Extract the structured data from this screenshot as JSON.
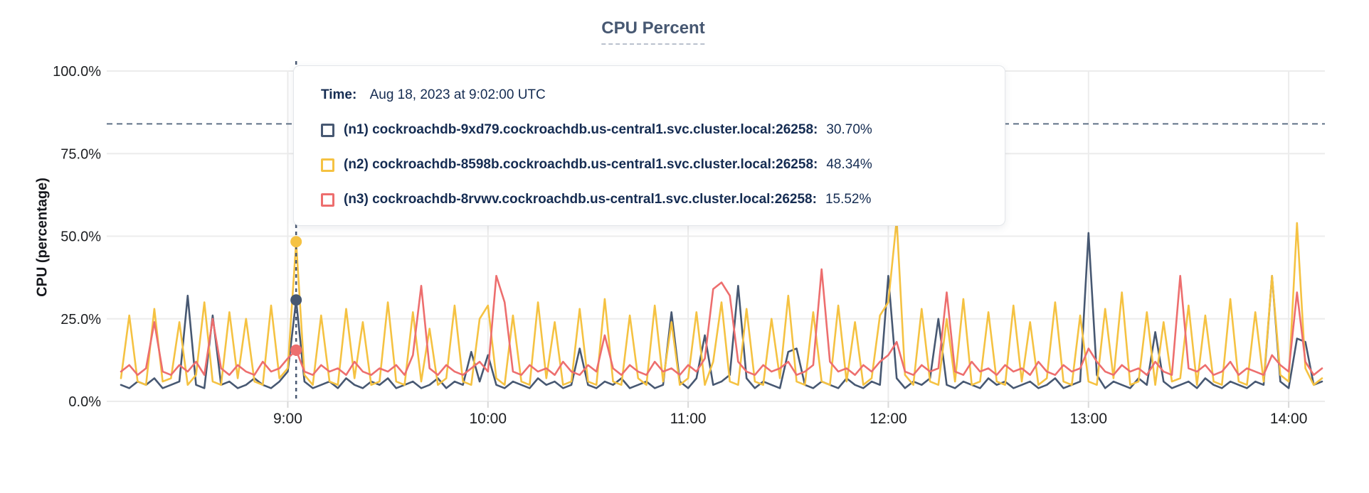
{
  "chart": {
    "title": "CPU Percent"
  },
  "y_axis": {
    "title": "CPU (percentage)"
  },
  "tooltip": {
    "time_label": "Time:",
    "time_value": "Aug 18, 2023 at 9:02:00 UTC",
    "rows": [
      {
        "label": "(n1) cockroachdb-9xd79.cockroachdb.us-central1.svc.cluster.local:26258:",
        "value": "30.70%"
      },
      {
        "label": "(n2) cockroachdb-8598b.cockroachdb.us-central1.svc.cluster.local:26258:",
        "value": "48.34%"
      },
      {
        "label": "(n3) cockroachdb-8rvwv.cockroachdb.us-central1.svc.cluster.local:26258:",
        "value": "15.52%"
      }
    ]
  },
  "colors": {
    "grid": "#ececec",
    "tick": "#d9d9d9",
    "tick_text": "#1c1e21",
    "threshold": "#5f7186",
    "hover_line": "#4a5a74",
    "title": "#475872",
    "tooltip_text": "#152c52"
  },
  "chart_data": {
    "type": "line",
    "title": "CPU Percent",
    "xlabel": "",
    "ylabel": "CPU (percentage)",
    "ylim": [
      0,
      100
    ],
    "grid": true,
    "x_range_minutes": [
      490,
      850
    ],
    "y_ticks": [
      {
        "label": "100.0%",
        "v": 100
      },
      {
        "label": "75.0%",
        "v": 75
      },
      {
        "label": "50.0%",
        "v": 50
      },
      {
        "label": "25.0%",
        "v": 25
      },
      {
        "label": "0.0%",
        "v": 0
      }
    ],
    "x_ticks": [
      {
        "label": "9:00",
        "t": 540
      },
      {
        "label": "10:00",
        "t": 600
      },
      {
        "label": "11:00",
        "t": 660
      },
      {
        "label": "12:00",
        "t": 720
      },
      {
        "label": "13:00",
        "t": 780
      },
      {
        "label": "14:00",
        "t": 840
      }
    ],
    "threshold_pct": 84,
    "hover": {
      "t": 542.5,
      "time": "9:02:00"
    },
    "series": [
      {
        "id": "n1",
        "name": "(n1) cockroachdb-9xd79.cockroachdb.us-central1.svc.cluster.local:26258",
        "color": "#475872",
        "hover_value": 30.7,
        "t0": 490,
        "step_min": 2.5,
        "values": [
          5,
          4,
          6,
          5,
          7,
          4,
          5,
          6,
          32,
          5,
          4,
          26,
          5,
          6,
          4,
          5,
          7,
          5,
          4,
          6,
          9,
          30.7,
          6,
          4,
          5,
          6,
          4,
          7,
          5,
          4,
          6,
          5,
          7,
          4,
          5,
          6,
          4,
          5,
          7,
          4,
          6,
          5,
          15,
          6,
          14,
          5,
          4,
          6,
          5,
          4,
          7,
          5,
          6,
          4,
          5,
          16,
          5,
          4,
          6,
          5,
          7,
          4,
          5,
          6,
          4,
          5,
          27,
          6,
          4,
          7,
          20,
          5,
          6,
          8,
          35,
          7,
          4,
          6,
          5,
          4,
          15,
          16,
          5,
          4,
          6,
          5,
          4,
          7,
          5,
          4,
          6,
          5,
          38,
          7,
          4,
          6,
          5,
          7,
          25,
          5,
          4,
          6,
          5,
          4,
          7,
          5,
          6,
          4,
          5,
          6,
          4,
          5,
          7,
          4,
          5,
          6,
          51,
          8,
          4,
          6,
          5,
          4,
          7,
          5,
          21,
          6,
          4,
          5,
          6,
          4,
          7,
          5,
          4,
          6,
          5,
          4,
          6,
          5,
          38,
          6,
          4,
          19,
          18,
          5,
          6
        ]
      },
      {
        "id": "n2",
        "name": "(n2) cockroachdb-8598b.cockroachdb.us-central1.svc.cluster.local:26258",
        "color": "#f5c242",
        "hover_value": 48.34,
        "t0": 490,
        "step_min": 2.5,
        "values": [
          7,
          26,
          6,
          5,
          28,
          6,
          7,
          24,
          5,
          8,
          30,
          6,
          5,
          27,
          7,
          25,
          6,
          5,
          29,
          7,
          10,
          48.3,
          8,
          5,
          26,
          6,
          5,
          28,
          7,
          24,
          5,
          6,
          30,
          6,
          5,
          27,
          6,
          22,
          5,
          7,
          29,
          6,
          5,
          25,
          29,
          7,
          5,
          26,
          6,
          5,
          30,
          7,
          24,
          5,
          6,
          28,
          6,
          5,
          31,
          6,
          5,
          26,
          7,
          5,
          29,
          6,
          24,
          5,
          7,
          27,
          5,
          12,
          30,
          6,
          5,
          28,
          6,
          5,
          25,
          7,
          32,
          6,
          5,
          27,
          6,
          5,
          29,
          6,
          24,
          5,
          7,
          26,
          30,
          55,
          8,
          5,
          28,
          6,
          5,
          25,
          6,
          31,
          5,
          6,
          27,
          6,
          5,
          29,
          6,
          24,
          5,
          7,
          30,
          6,
          5,
          26,
          6,
          5,
          28,
          7,
          33,
          5,
          6,
          27,
          5,
          24,
          6,
          7,
          29,
          5,
          26,
          6,
          5,
          31,
          6,
          5,
          27,
          6,
          38,
          8,
          6,
          54,
          10,
          5,
          7
        ]
      },
      {
        "id": "n3",
        "name": "(n3) cockroachdb-8rvwv.cockroachdb.us-central1.svc.cluster.local:26258",
        "color": "#ed6e6e",
        "hover_value": 15.52,
        "t0": 490,
        "step_min": 2.5,
        "values": [
          9,
          11,
          8,
          10,
          24,
          9,
          8,
          11,
          9,
          12,
          8,
          25,
          10,
          8,
          11,
          9,
          8,
          12,
          9,
          10,
          13,
          15.5,
          9,
          8,
          11,
          9,
          10,
          8,
          12,
          9,
          8,
          10,
          9,
          11,
          8,
          14,
          35,
          10,
          8,
          11,
          9,
          8,
          10,
          12,
          9,
          38,
          30,
          9,
          8,
          11,
          9,
          10,
          8,
          12,
          9,
          8,
          11,
          9,
          20,
          10,
          8,
          11,
          9,
          8,
          12,
          9,
          10,
          8,
          11,
          9,
          13,
          34,
          36,
          32,
          12,
          9,
          8,
          11,
          9,
          10,
          12,
          8,
          9,
          11,
          40,
          12,
          9,
          10,
          8,
          11,
          9,
          12,
          14,
          18,
          9,
          8,
          11,
          9,
          10,
          33,
          9,
          8,
          12,
          9,
          10,
          8,
          11,
          9,
          10,
          8,
          12,
          9,
          8,
          11,
          9,
          10,
          16,
          12,
          9,
          8,
          11,
          9,
          10,
          8,
          12,
          9,
          8,
          38,
          10,
          9,
          11,
          8,
          9,
          12,
          8,
          10,
          9,
          8,
          14,
          11,
          9,
          33,
          12,
          8,
          10
        ]
      }
    ]
  }
}
